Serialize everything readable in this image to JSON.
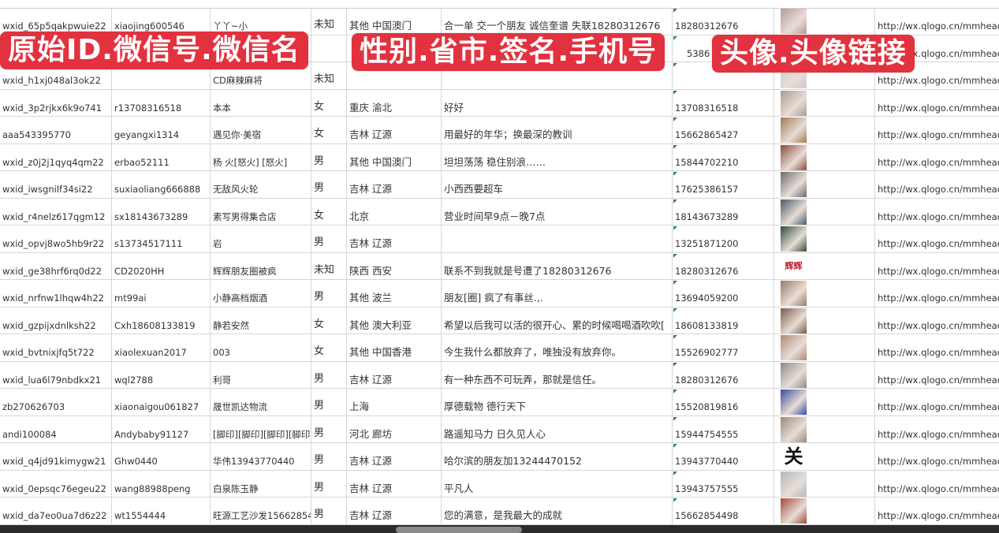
{
  "overlays": [
    "原始ID.微信号.微信名",
    "性别.省市.签名.手机号",
    "头像.头像链接"
  ],
  "colors": {
    "overlay": "#e2323f",
    "grid": "#d6d6d6",
    "text_marker": "#2e8b3a"
  },
  "rows": [
    {
      "id": "wxid_65p5qakpwuie22",
      "wechat": "xiaojing600546",
      "name": "丫丫~小",
      "gender": "未知",
      "region": "其他 中国澳门",
      "signature": "合一单 交一个朋友 诚信奎谱 失联18280312676",
      "phone": "18280312676",
      "avatar": "#b59a9a",
      "url": "http://wx.qlogo.cn/mmhead"
    },
    {
      "id": "",
      "wechat": "",
      "name": "",
      "gender": "",
      "region": "",
      "signature": "",
      "phone": "5386",
      "avatar": "#5c6fa8",
      "url": "http://wx.qlogo.cn/mmhead"
    },
    {
      "id": "wxid_h1xj048al3ok22",
      "wechat": "",
      "name": "CD麻辣麻将",
      "gender": "未知",
      "region": "",
      "signature": "",
      "phone": "",
      "avatar": "#c9c9d4",
      "url": "http://wx.qlogo.cn/mmhead"
    },
    {
      "id": "wxid_3p2rjkx6k9o741",
      "wechat": "r13708316518",
      "name": "本本",
      "gender": "女",
      "region": "重庆 渝北",
      "signature": "好好",
      "phone": "13708316518",
      "avatar": "#a89a90",
      "url": "http://wx.qlogo.cn/mmhead"
    },
    {
      "id": "aaa543395770",
      "wechat": "geyangxi1314",
      "name": "遇见你·美宿",
      "gender": "女",
      "region": "吉林 辽源",
      "signature": "用最好的年华；换最深的教训",
      "phone": "15662865427",
      "avatar": "#a07a55",
      "url": "http://wx.qlogo.cn/mmhead"
    },
    {
      "id": "wxid_z0j2j1qyq4qm22",
      "wechat": "erbao52111",
      "name": "杨 火[怒火] [怒火]",
      "gender": "男",
      "region": "其他 中国澳门",
      "signature": "坦坦荡荡 稳住别浪……",
      "phone": "15844702210",
      "avatar": "#8a4a3a",
      "url": "http://wx.qlogo.cn/mmhead"
    },
    {
      "id": "wxid_iwsgnilf34si22",
      "wechat": "suxiaoliang666888",
      "name": "无敌风火轮",
      "gender": "男",
      "region": "吉林 辽源",
      "signature": "小西西要超车",
      "phone": "17625386157",
      "avatar": "#6a6a70",
      "url": "http://wx.qlogo.cn/mmhead"
    },
    {
      "id": "wxid_r4nelz617qgm12",
      "wechat": "sx18143673289",
      "name": "素写男得集合店",
      "gender": "女",
      "region": "北京",
      "signature": "营业时间早9点－晚7点",
      "phone": "18143673289",
      "avatar": "#4a5a6a",
      "url": "http://wx.qlogo.cn/mmhead"
    },
    {
      "id": "wxid_opvj8wo5hb9r22",
      "wechat": "s13734517111",
      "name": "岩",
      "gender": "男",
      "region": "吉林 辽源",
      "signature": "",
      "phone": "13251871200",
      "avatar": "#2e4a3a",
      "url": "http://wx.qlogo.cn/mmhead"
    },
    {
      "id": "wxid_ge38hrf6rq0d22",
      "wechat": "CD2020HH",
      "name": "辉辉朋友圈被疯",
      "gender": "未知",
      "region": "陕西 西安",
      "signature": "联系不到我就是号遭了18280312676",
      "phone": "18280312676",
      "avatar": "#ffffff",
      "avatar_text": "辉辉",
      "url": "http://wx.qlogo.cn/mmhead"
    },
    {
      "id": "wxid_nrfnw1lhqw4h22",
      "wechat": "mt99ai",
      "name": "小静高档烟酒",
      "gender": "男",
      "region": "其他 波兰",
      "signature": "朋友[圈] 疯了有事丝.,.",
      "phone": "13694059200",
      "avatar": "#9a7a6a",
      "url": "http://wx.qlogo.cn/mmhead"
    },
    {
      "id": "wxid_gzpijxdnlksh22",
      "wechat": "Cxh18608133819",
      "name": "静若安然",
      "gender": "女",
      "region": "其他 澳大利亚",
      "signature": "希望以后我可以活的很开心、累的时候喝喝酒吹吹[",
      "phone": "18608133819",
      "avatar": "#7a5a4a",
      "url": "http://wx.qlogo.cn/mmhead"
    },
    {
      "id": "wxid_bvtnixjfq5t722",
      "wechat": "xiaolexuan2017",
      "name": "003",
      "gender": "女",
      "region": "其他 中国香港",
      "signature": "今生我什么都放弃了，唯独没有放弃你。",
      "phone": "15526902777",
      "avatar": "#b08a7a",
      "url": "http://wx.qlogo.cn/mmhead"
    },
    {
      "id": "wxid_lua6l79nbdkx21",
      "wechat": "wql2788",
      "name": "利哥",
      "gender": "男",
      "region": "吉林 辽源",
      "signature": "有一种东西不可玩弄，那就是信任。",
      "phone": "18280312676",
      "avatar": "#8a8a8a",
      "url": "http://wx.qlogo.cn/mmhead"
    },
    {
      "id": "zb270626703",
      "wechat": "xiaonaigou061827",
      "name": "晟世凯达物流",
      "gender": "男",
      "region": "上海",
      "signature": "厚德载物 德行天下",
      "phone": "15520819816",
      "avatar": "#3a4aa0",
      "url": "http://wx.qlogo.cn/mmhead"
    },
    {
      "id": "andi100084",
      "wechat": "Andybaby91127",
      "name": "[脚印][脚印][脚印][脚印]",
      "gender": "男",
      "region": "河北 廊坊",
      "signature": "路遥知马力 日久见人心",
      "phone": "15944754555",
      "avatar": "#9a8a7a",
      "url": "http://wx.qlogo.cn/mmhead"
    },
    {
      "id": "wxid_q4jd91kimygw21",
      "wechat": "Ghw0440",
      "name": "华伟13943770440",
      "gender": "男",
      "region": "吉林 辽源",
      "signature": "哈尔滨的朋友加13244470152",
      "phone": "13943770440",
      "avatar": "#ffffff",
      "avatar_text": "关",
      "url": "http://wx.qlogo.cn/mmhead"
    },
    {
      "id": "wxid_0epsqc76egeu22",
      "wechat": "wang88988peng",
      "name": "白泉陈玉静",
      "gender": "男",
      "region": "吉林 辽源",
      "signature": "平凡人",
      "phone": "13943757555",
      "avatar": "#b0b8c0",
      "url": "http://wx.qlogo.cn/mmhead"
    },
    {
      "id": "wxid_da7eo0ua7d6z22",
      "wechat": "wt1554444",
      "name": "旺源工艺沙发15662854",
      "gender": "男",
      "region": "吉林 辽源",
      "signature": "您的满意，是我最大的成就",
      "phone": "15662854498",
      "avatar": "#a04a3a",
      "url": "http://wx.qlogo.cn/mmhead"
    },
    {
      "id": "",
      "wechat": "",
      "name": "",
      "gender": "",
      "region": "",
      "signature": "",
      "phone": "",
      "avatar": "#c04040",
      "url": ""
    }
  ]
}
